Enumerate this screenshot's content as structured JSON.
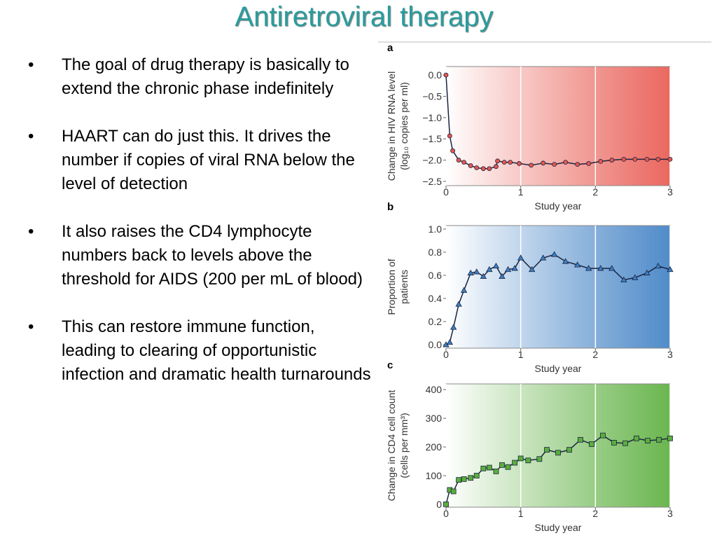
{
  "header": {
    "title": "Antiretroviral therapy"
  },
  "bullets": [
    "The goal of drug therapy is basically to extend the chronic phase indefinitely",
    "HAART can do just this.  It drives the number if copies of viral RNA below the level of detection",
    "It also raises the CD4 lymphocyte numbers back to levels above the threshold for AIDS (200 per mL of blood)",
    "This can restore immune function, leading to clearing of opportunistic infection and dramatic health turnarounds"
  ],
  "chart_data": [
    {
      "type": "line",
      "panel": "a",
      "ylabel": [
        "Change in HIV RNA level",
        "(log₁₀ copies per ml)"
      ],
      "xlabel": "Study year",
      "x": [
        0,
        0.05,
        0.09,
        0.17,
        0.24,
        0.33,
        0.41,
        0.5,
        0.58,
        0.67,
        0.69,
        0.78,
        0.86,
        0.98,
        1.14,
        1.3,
        1.45,
        1.6,
        1.76,
        1.91,
        2.07,
        2.22,
        2.38,
        2.53,
        2.69,
        2.84,
        3.0
      ],
      "values": [
        0,
        -1.43,
        -1.78,
        -2.0,
        -2.05,
        -2.13,
        -2.18,
        -2.2,
        -2.2,
        -2.15,
        -2.02,
        -2.05,
        -2.05,
        -2.08,
        -2.12,
        -2.07,
        -2.1,
        -2.05,
        -2.1,
        -2.08,
        -2.03,
        -2.0,
        -1.98,
        -1.98,
        -1.98,
        -1.98,
        -1.98
      ],
      "color": "#e8574e",
      "marker": "circle",
      "xlim": [
        0,
        3
      ],
      "ylim": [
        -2.6,
        0.2
      ],
      "xticks": [
        0,
        1,
        2,
        3
      ],
      "yticks": [
        {
          "value": 0,
          "label": "0.0"
        },
        {
          "value": -0.5,
          "label": "−0.5"
        },
        {
          "value": -1.0,
          "label": "−1.0"
        },
        {
          "value": -1.5,
          "label": "−1.5"
        },
        {
          "value": -2.0,
          "label": "−2.0"
        },
        {
          "value": -2.5,
          "label": "−2.5"
        }
      ],
      "grid": true
    },
    {
      "type": "line",
      "panel": "b",
      "ylabel": [
        "Proportion of",
        "patients"
      ],
      "xlabel": "Study year",
      "x": [
        0,
        0.05,
        0.1,
        0.17,
        0.24,
        0.33,
        0.41,
        0.5,
        0.58,
        0.67,
        0.75,
        0.83,
        0.92,
        1.0,
        1.15,
        1.3,
        1.45,
        1.6,
        1.76,
        1.91,
        2.07,
        2.22,
        2.38,
        2.53,
        2.69,
        2.84,
        3.0
      ],
      "values": [
        0,
        0.02,
        0.15,
        0.35,
        0.47,
        0.62,
        0.63,
        0.59,
        0.65,
        0.68,
        0.59,
        0.65,
        0.66,
        0.75,
        0.65,
        0.75,
        0.78,
        0.72,
        0.69,
        0.66,
        0.66,
        0.66,
        0.56,
        0.58,
        0.62,
        0.68,
        0.65
      ],
      "color": "#3d7fc4",
      "marker": "triangle",
      "xlim": [
        0,
        3
      ],
      "ylim": [
        -0.03,
        1.03
      ],
      "xticks": [
        0,
        1,
        2,
        3
      ],
      "yticks": [
        {
          "value": 0,
          "label": "0.0"
        },
        0.2,
        0.4,
        0.6,
        0.8,
        {
          "value": 1,
          "label": "1.0"
        }
      ],
      "grid": true
    },
    {
      "type": "line",
      "panel": "c",
      "ylabel": [
        "Change in CD4 cell count",
        "(cells per mm³)"
      ],
      "xlabel": "Study year",
      "x": [
        0,
        0.05,
        0.1,
        0.17,
        0.24,
        0.33,
        0.41,
        0.5,
        0.58,
        0.67,
        0.75,
        0.83,
        0.92,
        1.0,
        1.1,
        1.25,
        1.35,
        1.5,
        1.65,
        1.8,
        1.95,
        2.1,
        2.25,
        2.4,
        2.55,
        2.7,
        2.85,
        3.0
      ],
      "values": [
        0,
        50,
        45,
        85,
        88,
        92,
        100,
        125,
        128,
        115,
        137,
        130,
        145,
        160,
        153,
        158,
        190,
        180,
        190,
        225,
        210,
        240,
        215,
        213,
        230,
        222,
        225,
        230
      ],
      "color": "#5aae3c",
      "marker": "square",
      "xlim": [
        0,
        3
      ],
      "ylim": [
        -10,
        420
      ],
      "xticks": [
        0,
        1,
        2,
        3
      ],
      "yticks": [
        0,
        100,
        200,
        300,
        400
      ],
      "grid": true
    }
  ]
}
